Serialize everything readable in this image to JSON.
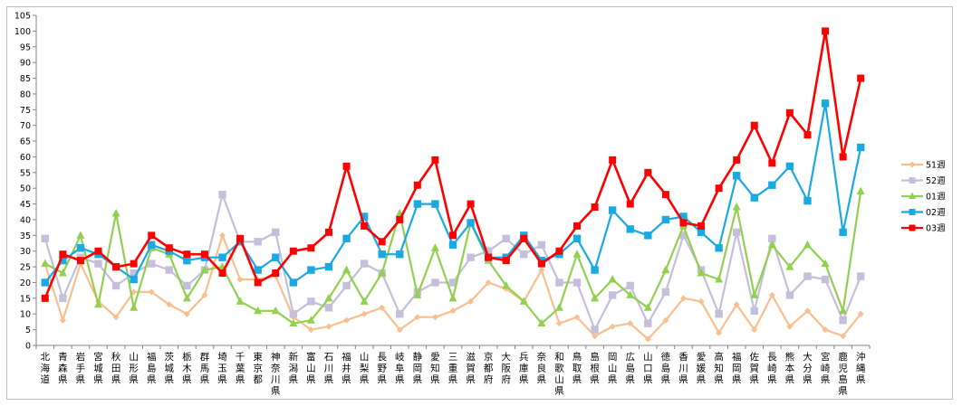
{
  "chart_data": {
    "type": "line",
    "title": "",
    "xlabel": "",
    "ylabel": "",
    "ylim": [
      0,
      105
    ],
    "yticks": [
      0,
      5,
      10,
      15,
      20,
      25,
      30,
      35,
      40,
      45,
      50,
      55,
      60,
      65,
      70,
      75,
      80,
      85,
      90,
      95,
      100,
      105
    ],
    "grid": false,
    "legend": "right",
    "categories": [
      "北海道",
      "青森県",
      "岩手県",
      "宮城県",
      "秋田県",
      "山形県",
      "福島県",
      "茨城県",
      "栃木県",
      "群馬県",
      "埼玉県",
      "千葉県",
      "東京都",
      "神奈川県",
      "新潟県",
      "富山県",
      "石川県",
      "福井県",
      "山梨県",
      "長野県",
      "岐阜県",
      "静岡県",
      "愛知県",
      "三重県",
      "滋賀県",
      "京都府",
      "大阪府",
      "兵庫県",
      "奈良県",
      "和歌山県",
      "鳥取県",
      "島根県",
      "岡山県",
      "広島県",
      "山口県",
      "徳島県",
      "香川県",
      "愛媛県",
      "高知県",
      "福岡県",
      "佐賀県",
      "長崎県",
      "熊本県",
      "大分県",
      "宮崎県",
      "鹿児島県",
      "沖縄県"
    ],
    "series": [
      {
        "name": "51週",
        "color": "#f9bf8f",
        "marker": "diamond",
        "values": [
          26,
          8,
          26,
          14,
          9,
          17,
          17,
          13,
          10,
          16,
          35,
          21,
          21,
          22,
          9,
          5,
          6,
          8,
          10,
          12,
          5,
          9,
          9,
          11,
          14,
          20,
          18,
          14,
          24,
          7,
          9,
          3,
          6,
          7,
          2,
          8,
          15,
          14,
          4,
          13,
          5,
          16,
          6,
          11,
          5,
          3,
          10
        ]
      },
      {
        "name": "52週",
        "color": "#c5bfdc",
        "marker": "square",
        "values": [
          34,
          15,
          28,
          26,
          19,
          23,
          26,
          24,
          19,
          24,
          48,
          33,
          33,
          36,
          10,
          14,
          12,
          19,
          26,
          23,
          10,
          17,
          20,
          20,
          28,
          30,
          34,
          29,
          32,
          20,
          20,
          5,
          16,
          19,
          7,
          17,
          35,
          24,
          10,
          36,
          11,
          34,
          16,
          22,
          21,
          8,
          22
        ]
      },
      {
        "name": "01週",
        "color": "#92d050",
        "marker": "triangle",
        "values": [
          26,
          23,
          35,
          13,
          42,
          12,
          31,
          29,
          15,
          24,
          25,
          14,
          11,
          11,
          7,
          8,
          15,
          24,
          14,
          23,
          42,
          16,
          31,
          15,
          39,
          27,
          19,
          14,
          7,
          12,
          29,
          15,
          21,
          16,
          12,
          24,
          38,
          23,
          21,
          44,
          16,
          32,
          25,
          32,
          26,
          11,
          49
        ]
      },
      {
        "name": "02週",
        "color": "#1ba9e1",
        "marker": "square",
        "values": [
          20,
          27,
          31,
          29,
          25,
          21,
          32,
          30,
          27,
          28,
          28,
          33,
          24,
          28,
          20,
          24,
          25,
          34,
          41,
          29,
          29,
          45,
          45,
          32,
          39,
          28,
          28,
          35,
          27,
          29,
          34,
          24,
          43,
          37,
          35,
          40,
          41,
          36,
          31,
          54,
          47,
          51,
          57,
          46,
          77,
          36,
          63
        ]
      },
      {
        "name": "03週",
        "color": "#ff0000",
        "marker": "square",
        "values": [
          15,
          29,
          27,
          30,
          25,
          26,
          35,
          31,
          29,
          29,
          23,
          34,
          20,
          23,
          30,
          31,
          36,
          57,
          38,
          33,
          40,
          51,
          59,
          35,
          45,
          28,
          27,
          34,
          26,
          30,
          38,
          44,
          59,
          45,
          55,
          48,
          39,
          38,
          50,
          59,
          70,
          58,
          74,
          67,
          100,
          60,
          85
        ]
      }
    ]
  }
}
